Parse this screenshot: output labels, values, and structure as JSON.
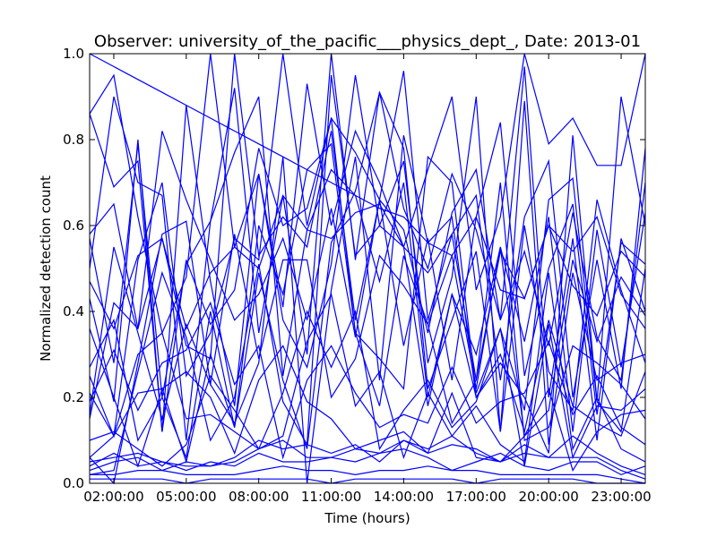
{
  "chart_data": {
    "type": "line",
    "title": "Observer: university_of_the_pacific___physics_dept_, Date: 2013-01",
    "xlabel": "Time (hours)",
    "ylabel": "Normalized detection count",
    "xlim": [
      1,
      24
    ],
    "ylim": [
      0,
      1
    ],
    "x_ticks": [
      {
        "value": 2,
        "label": "02:00:00"
      },
      {
        "value": 5,
        "label": "05:00:00"
      },
      {
        "value": 8,
        "label": "08:00:00"
      },
      {
        "value": 11,
        "label": "11:00:00"
      },
      {
        "value": 14,
        "label": "14:00:00"
      },
      {
        "value": 17,
        "label": "17:00:00"
      },
      {
        "value": 20,
        "label": "20:00:00"
      },
      {
        "value": 23,
        "label": "23:00:00"
      }
    ],
    "y_ticks": [
      {
        "value": 0,
        "label": "0.0"
      },
      {
        "value": 0.2,
        "label": "0.2"
      },
      {
        "value": 0.4,
        "label": "0.4"
      },
      {
        "value": 0.6,
        "label": "0.6"
      },
      {
        "value": 0.8,
        "label": "0.8"
      },
      {
        "value": 1,
        "label": "1.0"
      }
    ],
    "grid": false,
    "line_color": "#0000ff",
    "x": [
      1,
      2,
      3,
      4,
      5,
      6,
      7,
      8,
      9,
      10,
      11,
      12,
      13,
      14,
      15,
      16,
      17,
      18,
      19,
      20,
      21,
      22,
      23,
      24
    ],
    "series": [
      {
        "values": [
          0.86,
          0.95,
          0.62,
          0.35,
          0.48,
          1.0,
          0.55,
          0.72,
          0.41,
          0.93,
          0.6,
          0.82,
          0.7,
          0.55,
          0.73,
          0.9,
          0.45,
          0.62,
          1.0,
          0.79,
          0.85,
          0.74,
          0.74,
          1.0
        ]
      },
      {
        "values": [
          0.57,
          0.28,
          0.79,
          0.2,
          0.51,
          0.61,
          0.92,
          0.35,
          0.67,
          0.3,
          1.0,
          0.52,
          0.91,
          0.64,
          0.5,
          0.72,
          0.59,
          0.38,
          0.97,
          0.2,
          0.57,
          0.1,
          0.57,
          0.4
        ]
      },
      {
        "values": [
          0.25,
          0.11,
          0.52,
          0.7,
          0.25,
          0.35,
          0.57,
          0.52,
          1.0,
          0.6,
          0.85,
          0.77,
          0.66,
          0.32,
          0.57,
          0.24,
          0.62,
          0.84,
          0.25,
          0.5,
          0.65,
          0.16,
          0.56,
          0.51
        ]
      },
      {
        "values": [
          0.43,
          0.19,
          0.8,
          0.12,
          0.88,
          0.47,
          0.18,
          0.72,
          0.38,
          0.27,
          0.51,
          0.95,
          0.6,
          0.75,
          0.28,
          0.48,
          0.9,
          0.12,
          0.6,
          0.26,
          0.17,
          0.66,
          0.45,
          0.28
        ]
      },
      {
        "values": [
          0.5,
          0.9,
          0.7,
          0.67,
          0.1,
          0.61,
          0.77,
          0.9,
          0.25,
          0.59,
          0.73,
          0.67,
          0.47,
          0.7,
          0.2,
          0.44,
          0.3,
          0.55,
          0.33,
          0.62,
          0.12,
          0.59,
          0.27,
          0.63
        ]
      },
      {
        "values": [
          0.15,
          0.42,
          0.36,
          0.57,
          0.32,
          0.29,
          1.0,
          0.53,
          0.62,
          0.55,
          0.82,
          0.38,
          0.66,
          0.96,
          0.38,
          0.58,
          0.67,
          0.24,
          0.62,
          0.75,
          0.2,
          0.52,
          0.22,
          0.78
        ]
      },
      {
        "values": [
          0.06,
          0.0,
          0.28,
          0.58,
          0.61,
          0.23,
          0.14,
          0.28,
          0.76,
          0.0,
          0.45,
          0.76,
          0.24,
          0.81,
          0.56,
          0.62,
          0.2,
          0.28,
          0.2,
          0.07,
          0.81,
          0.19,
          0.12,
          0.5
        ]
      },
      {
        "values": [
          0.02,
          0.03,
          0.26,
          0.49,
          0.34,
          0.1,
          0.2,
          0.51,
          0.19,
          0.09,
          0.95,
          0.53,
          0.6,
          0.55,
          0.18,
          0.44,
          0.2,
          0.3,
          0.12,
          0.38,
          0.18,
          0.14,
          0.11,
          0.26
        ]
      },
      {
        "values": [
          0.36,
          0.2,
          0.04,
          0.22,
          0.05,
          0.3,
          0.13,
          0.6,
          0.44,
          0.73,
          0.79,
          0.35,
          0.18,
          0.53,
          0.37,
          0.14,
          0.24,
          0.7,
          0.1,
          0.13,
          0.32,
          0.28,
          0.23,
          0.15
        ]
      },
      {
        "values": [
          0.1,
          0.12,
          0.08,
          0.04,
          0.09,
          0.25,
          0.17,
          0.08,
          0.11,
          0.33,
          0.44,
          0.18,
          0.26,
          0.06,
          0.21,
          0.11,
          0.18,
          0.09,
          0.05,
          0.49,
          0.08,
          0.2,
          0.08,
          0.05
        ]
      },
      {
        "values": [
          0.03,
          0.05,
          0.06,
          0.03,
          0.05,
          0.04,
          0.06,
          0.1,
          0.08,
          0.09,
          0.07,
          0.09,
          0.05,
          0.1,
          0.08,
          0.11,
          0.07,
          0.05,
          0.09,
          0.06,
          0.11,
          0.07,
          0.04,
          0.02
        ]
      },
      {
        "values": [
          0.05,
          0.06,
          0.07,
          0.05,
          0.04,
          0.04,
          0.05,
          0.08,
          0.1,
          0.06,
          0.06,
          0.08,
          0.07,
          0.1,
          0.07,
          0.09,
          0.08,
          0.05,
          0.07,
          0.06,
          0.06,
          0.06,
          0.03,
          0.01
        ]
      },
      {
        "values": [
          0.02,
          0.02,
          0.03,
          0.03,
          0.02,
          0.02,
          0.02,
          0.03,
          0.04,
          0.03,
          0.03,
          0.02,
          0.03,
          0.03,
          0.04,
          0.03,
          0.03,
          0.02,
          0.02,
          0.02,
          0.02,
          0.02,
          0.01,
          0.0
        ]
      },
      {
        "values": [
          0.01,
          0.01,
          0.01,
          0.01,
          0.0,
          0.01,
          0.01,
          0.01,
          0.01,
          0.01,
          0.0,
          0.01,
          0.01,
          0.01,
          0.01,
          0.01,
          0.0,
          0.01,
          0.01,
          0.01,
          0.01,
          0.0,
          0.0,
          0.0
        ]
      },
      {
        "values": [
          1.0,
          0.97,
          0.94,
          0.91,
          0.88,
          0.85,
          0.82,
          0.79,
          0.76,
          0.73,
          0.7,
          0.67,
          0.64,
          0.62,
          0.56,
          0.53,
          0.62,
          0.45,
          0.43,
          0.6,
          0.54,
          0.62,
          0.44,
          0.36
        ]
      },
      {
        "values": [
          0.27,
          0.38,
          0.1,
          0.2,
          0.06,
          0.4,
          0.13,
          0.49,
          0.24,
          0.08,
          0.56,
          0.68,
          0.91,
          0.78,
          0.22,
          0.38,
          0.54,
          0.12,
          0.89,
          0.09,
          0.49,
          0.24,
          0.28,
          0.3
        ]
      },
      {
        "values": [
          0.86,
          0.69,
          0.75,
          0.12,
          0.52,
          0.37,
          0.45,
          0.78,
          0.6,
          0.64,
          0.85,
          0.35,
          0.29,
          0.22,
          0.76,
          0.7,
          0.21,
          0.36,
          0.17,
          0.66,
          0.71,
          0.19,
          0.9,
          0.6
        ]
      },
      {
        "values": [
          0.16,
          0.55,
          0.35,
          0.15,
          0.37,
          0.23,
          0.58,
          0.29,
          0.52,
          0.52,
          0.2,
          0.29,
          0.53,
          0.46,
          0.37,
          0.53,
          0.22,
          0.55,
          0.11,
          0.17,
          0.52,
          0.33,
          0.48,
          0.39
        ]
      },
      {
        "values": [
          0.06,
          0.11,
          0.3,
          0.35,
          0.15,
          0.16,
          0.12,
          0.08,
          0.21,
          0.4,
          0.27,
          0.4,
          0.08,
          0.17,
          0.24,
          0.13,
          0.19,
          0.36,
          0.04,
          0.37,
          0.06,
          0.18,
          0.17,
          0.22
        ]
      },
      {
        "values": [
          0.58,
          0.65,
          0.36,
          0.82,
          0.66,
          0.52,
          0.38,
          0.44,
          0.57,
          0.38,
          0.64,
          0.34,
          0.66,
          0.59,
          0.35,
          0.63,
          0.73,
          0.38,
          0.54,
          0.32,
          0.63,
          0.34,
          0.24,
          0.7
        ]
      },
      {
        "values": [
          0.19,
          0.31,
          0.17,
          0.28,
          0.31,
          0.42,
          0.23,
          0.32,
          0.06,
          0.24,
          0.32,
          0.21,
          0.13,
          0.16,
          0.14,
          0.27,
          0.14,
          0.19,
          0.21,
          0.33,
          0.16,
          0.25,
          0.13,
          0.09
        ]
      },
      {
        "values": [
          0.47,
          0.36,
          0.53,
          0.57,
          0.36,
          0.49,
          0.55,
          0.5,
          0.67,
          0.59,
          0.57,
          0.63,
          0.65,
          0.55,
          0.49,
          0.58,
          0.24,
          0.54,
          0.43,
          0.6,
          0.46,
          0.39,
          0.54,
          0.48
        ]
      },
      {
        "values": [
          0.21,
          0.11,
          0.21,
          0.22,
          0.26,
          0.2,
          0.07,
          0.24,
          0.32,
          0.19,
          0.15,
          0.08,
          0.1,
          0.12,
          0.07,
          0.21,
          0.06,
          0.05,
          0.11,
          0.22,
          0.03,
          0.12,
          0.16,
          0.17
        ]
      },
      {
        "values": [
          0.04,
          0.07,
          0.04,
          0.05,
          0.03,
          0.05,
          0.04,
          0.07,
          0.05,
          0.05,
          0.06,
          0.05,
          0.07,
          0.08,
          0.06,
          0.03,
          0.05,
          0.07,
          0.04,
          0.03,
          0.05,
          0.05,
          0.02,
          0.04
        ]
      }
    ]
  }
}
